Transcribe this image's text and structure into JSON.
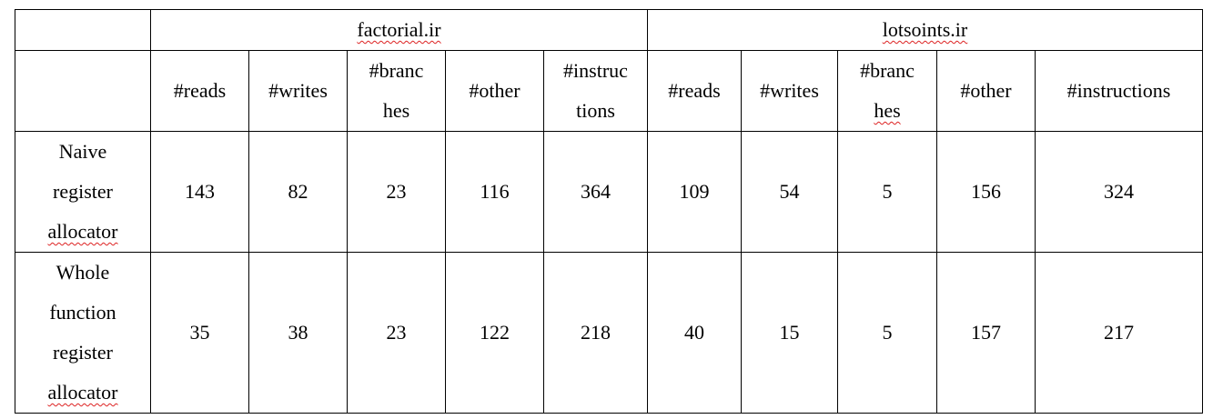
{
  "table": {
    "corner_top": "",
    "corner_sub": "",
    "groups": [
      {
        "name": "factorial.ir",
        "headers": [
          "#reads",
          "#writes",
          "#branc hes",
          "#other",
          "#instruc tions"
        ]
      },
      {
        "name": "lotsoints.ir",
        "headers": [
          "#reads",
          "#writes",
          "#branc hes",
          "#other",
          "#instructions"
        ]
      }
    ],
    "header_lines": {
      "g1": [
        "#reads",
        "#writes",
        [
          "#branc",
          "hes"
        ],
        "#other",
        [
          "#instruc",
          "tions"
        ]
      ],
      "g2": [
        "#reads",
        "#writes",
        [
          "#branc",
          "hes"
        ],
        "#other",
        "#instructions"
      ]
    },
    "rows": [
      {
        "label_lines": [
          "Naive",
          "register",
          "allocator"
        ],
        "values": [
          "143",
          "82",
          "23",
          "116",
          "364",
          "109",
          "54",
          "5",
          "156",
          "324"
        ]
      },
      {
        "label_lines": [
          "Whole",
          "function",
          "register",
          "allocator"
        ],
        "values": [
          "35",
          "38",
          "23",
          "122",
          "218",
          "40",
          "15",
          "5",
          "157",
          "217"
        ]
      }
    ],
    "colors": {
      "border": "#000000",
      "text": "#000000",
      "spellcheck_underline": "#d22222"
    }
  }
}
